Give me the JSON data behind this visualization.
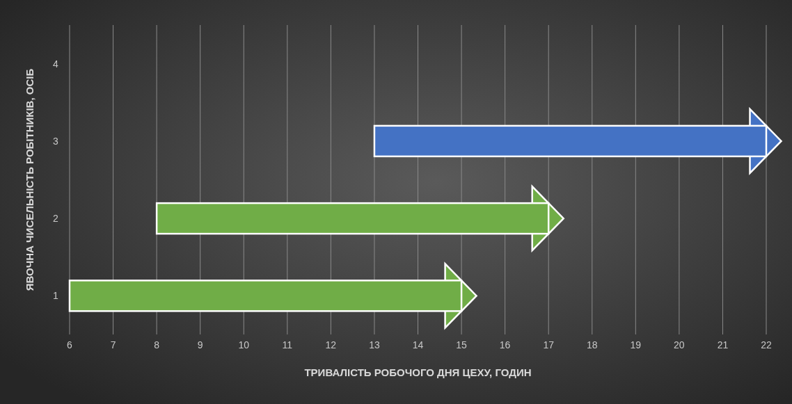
{
  "chart_data": {
    "type": "bar",
    "orientation": "horizontal",
    "xlabel": "ТРИВАЛІСТЬ РОБОЧОГО ДНЯ ЦЕХУ, ГОДИН",
    "ylabel": "ЯВОЧНА ЧИСЕЛЬНІСТЬ РОБІТНИКІВ, ОСІБ",
    "categories": [
      "4",
      "3",
      "2",
      "1"
    ],
    "values": [
      null,
      9,
      9,
      9
    ],
    "base": [
      null,
      13,
      8,
      6
    ],
    "colors": [
      "#4472c4",
      "#4472c4",
      "#70ad47",
      "#70ad47"
    ],
    "xlim": [
      6,
      22
    ],
    "xticks": [
      6,
      7,
      8,
      9,
      10,
      11,
      12,
      13,
      14,
      15,
      16,
      17,
      18,
      19,
      20,
      21,
      22
    ],
    "grid": "x"
  }
}
